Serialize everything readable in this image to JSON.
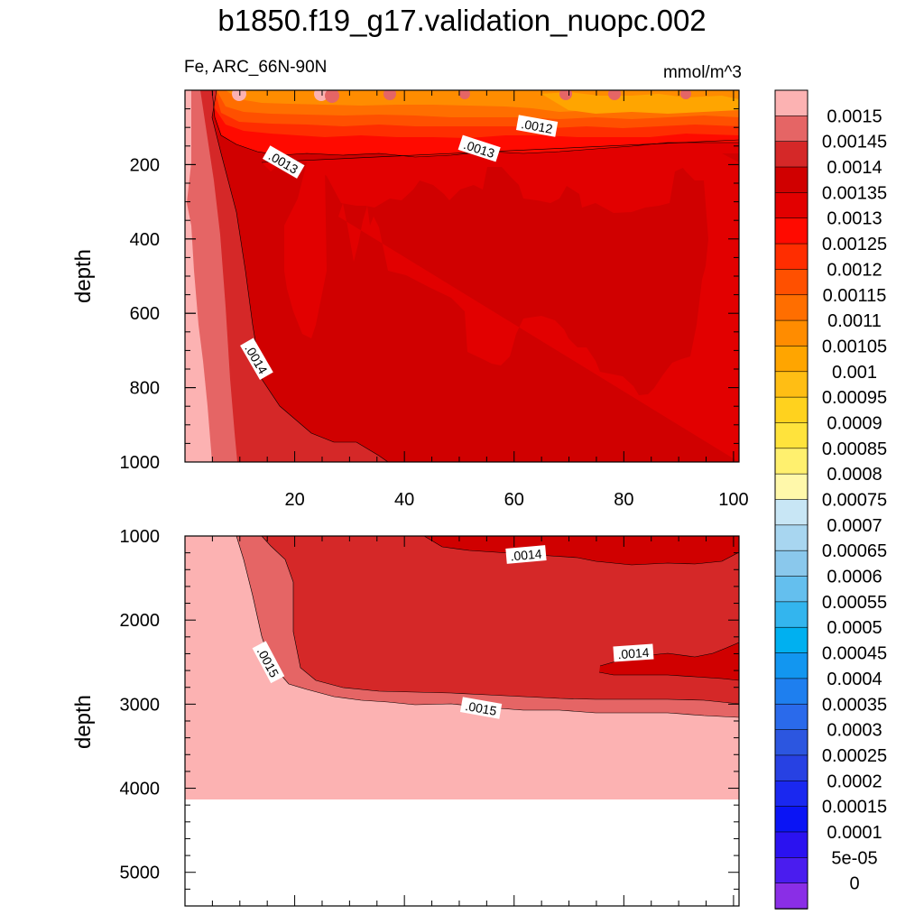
{
  "chart_data": {
    "type": "heatmap",
    "title": "b1850.f19_g17.validation_nuopc.002",
    "variable_label": "Fe, ARC_66N-90N",
    "units": "mmol/m^3",
    "panels": [
      {
        "name": "upper",
        "ylabel": "depth",
        "yticks": [
          "200",
          "400",
          "600",
          "800",
          "1000"
        ],
        "xticks": [
          "20",
          "40",
          "60",
          "80",
          "100"
        ],
        "ylim": [
          1000,
          0
        ],
        "xlim": [
          0,
          101
        ],
        "contour_labels": [
          ".0012",
          ".0013",
          ".0013",
          ".0014"
        ]
      },
      {
        "name": "lower",
        "ylabel": "depth",
        "yticks": [
          "1000",
          "2000",
          "3000",
          "4000",
          "5000"
        ],
        "ylim": [
          5400,
          1000
        ],
        "xlim": [
          0,
          101
        ],
        "contour_labels": [
          ".0014",
          ".0014",
          ".0015",
          ".0015"
        ]
      }
    ],
    "colorbar": {
      "levels": [
        "0.0015",
        "0.00145",
        "0.0014",
        "0.00135",
        "0.0013",
        "0.00125",
        "0.0012",
        "0.00115",
        "0.0011",
        "0.00105",
        "0.001",
        "0.00095",
        "0.0009",
        "0.00085",
        "0.0008",
        "0.00075",
        "0.0007",
        "0.00065",
        "0.0006",
        "0.00055",
        "0.0005",
        "0.00045",
        "0.0004",
        "0.00035",
        "0.0003",
        "0.00025",
        "0.0002",
        "0.00015",
        "0.0001",
        "5e-05",
        "0"
      ],
      "colors": [
        "#fcb2b2",
        "#e56565",
        "#d52828",
        "#d00000",
        "#e20000",
        "#ff0a00",
        "#ff2d00",
        "#ff5000",
        "#ff6e00",
        "#ff8c00",
        "#ffa500",
        "#ffbe14",
        "#ffd21e",
        "#ffe33c",
        "#fff06e",
        "#fff8aa",
        "#c8e6f5",
        "#a8d6f0",
        "#8ac8ec",
        "#64bfee",
        "#33b5ee",
        "#00b0f0",
        "#1296f0",
        "#1e7fef",
        "#2a6aeb",
        "#2c56e0",
        "#2741e3",
        "#1a28f0",
        "#0a14f5",
        "#2b12f0",
        "#4a1cef",
        "#8a2ee6"
      ]
    }
  }
}
